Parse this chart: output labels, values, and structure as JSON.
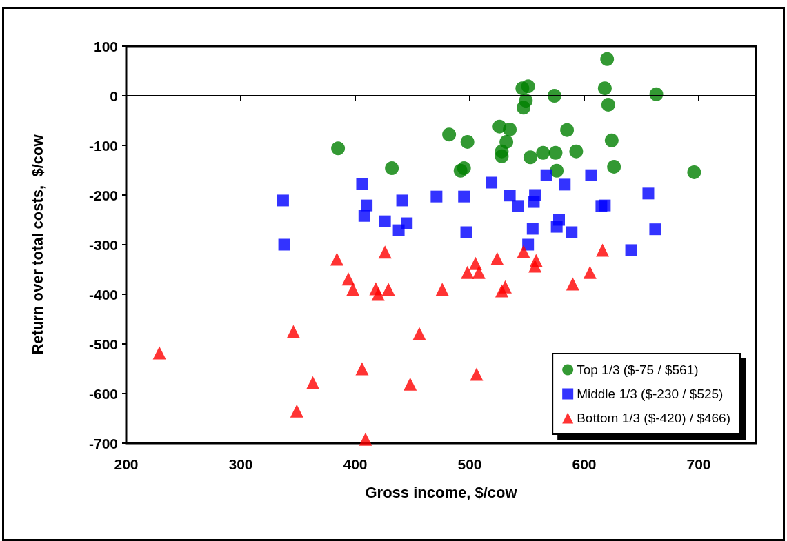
{
  "chart_data": {
    "type": "scatter",
    "xlabel": "Gross income, $/cow",
    "ylabel": "Return over total costs,  $/cow",
    "xlim": [
      200,
      750
    ],
    "xticks": [
      200,
      300,
      400,
      500,
      600,
      700
    ],
    "ylim": [
      -700,
      100
    ],
    "yticks": [
      -700,
      -600,
      -500,
      -400,
      -300,
      -200,
      -100,
      0,
      100
    ],
    "grid": false,
    "legend": "bottom right",
    "ref_lines": [
      {
        "axis": "y",
        "value": 0,
        "label": null
      }
    ],
    "series": [
      {
        "name": "Top 1/3 ($-75 / $561)",
        "color": "#008000",
        "marker": "circle",
        "x": [
          385,
          432,
          482,
          498,
          492,
          495,
          526,
          528,
          528,
          532,
          535,
          546,
          551,
          549,
          547,
          553,
          564,
          574,
          575,
          576,
          585,
          593,
          618,
          620,
          621,
          624,
          626,
          663,
          696
        ],
        "values": [
          -106,
          -146,
          -78,
          -93,
          -151,
          -146,
          -62,
          -112,
          -122,
          -93,
          -68,
          15,
          19,
          -10,
          -24,
          -124,
          -115,
          0,
          -115,
          -151,
          -69,
          -112,
          15,
          74,
          -18,
          -90,
          -143,
          3,
          -154
        ]
      },
      {
        "name": "Middle 1/3 ($-230 / $525)",
        "color": "#0000ff",
        "marker": "square",
        "x": [
          337,
          338,
          406,
          410,
          408,
          426,
          438,
          445,
          441,
          471,
          495,
          497,
          519,
          535,
          542,
          557,
          556,
          555,
          551,
          567,
          583,
          578,
          576,
          589,
          606,
          615,
          618,
          656,
          641,
          662
        ],
        "values": [
          -211,
          -300,
          -178,
          -221,
          -242,
          -253,
          -271,
          -257,
          -211,
          -203,
          -203,
          -275,
          -175,
          -201,
          -222,
          -200,
          -214,
          -268,
          -300,
          -160,
          -179,
          -250,
          -264,
          -275,
          -160,
          -222,
          -221,
          -197,
          -311,
          -269
        ]
      },
      {
        "name": "Bottom 1/3 ($-420) / $466)",
        "color": "#ff0000",
        "marker": "triangle",
        "x": [
          229,
          346,
          349,
          363,
          384,
          394,
          398,
          406,
          409,
          418,
          420,
          426,
          429,
          448,
          456,
          476,
          498,
          505,
          508,
          506,
          524,
          528,
          531,
          547,
          557,
          558,
          590,
          605,
          616
        ],
        "values": [
          -518,
          -475,
          -635,
          -578,
          -329,
          -369,
          -390,
          -550,
          -692,
          -389,
          -400,
          -315,
          -390,
          -581,
          -479,
          -390,
          -356,
          -338,
          -356,
          -561,
          -328,
          -393,
          -385,
          -314,
          -343,
          -332,
          -379,
          -356,
          -311
        ]
      }
    ]
  }
}
